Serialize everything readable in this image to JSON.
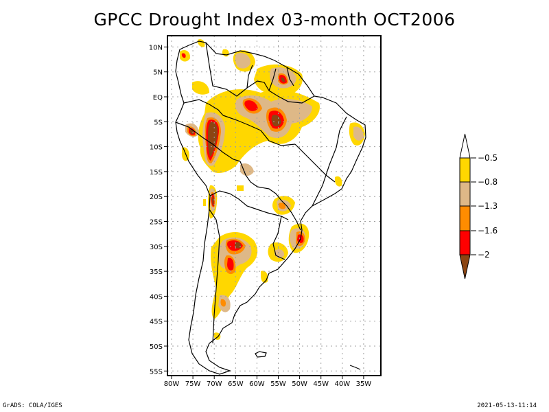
{
  "title": "GPCC Drought Index 03-month OCT2006",
  "footer": {
    "left": "GrADS: COLA/IGES",
    "right": "2021-05-13-11:14"
  },
  "map": {
    "region": "South America",
    "lon_range": [
      -81,
      -31
    ],
    "lat_range": [
      12,
      -56
    ],
    "y_ticks": [
      "10N",
      "5N",
      "EQ",
      "5S",
      "10S",
      "15S",
      "20S",
      "25S",
      "30S",
      "35S",
      "40S",
      "45S",
      "50S",
      "55S"
    ],
    "y_tick_values": [
      10,
      5,
      0,
      -5,
      -10,
      -15,
      -20,
      -25,
      -30,
      -35,
      -40,
      -45,
      -50,
      -55
    ],
    "x_ticks": [
      "80W",
      "75W",
      "70W",
      "65W",
      "60W",
      "55W",
      "50W",
      "45W",
      "40W",
      "35W"
    ],
    "x_tick_values": [
      -80,
      -75,
      -70,
      -65,
      -60,
      -55,
      -50,
      -45,
      -40,
      -35
    ],
    "grid": "dotted"
  },
  "colorbar": {
    "labels": [
      "-0.5",
      "-0.8",
      "-1.3",
      "-1.6",
      "-2"
    ],
    "colors": {
      "gt_-0.5_arrow": "#ffffff",
      "-0.8_to_-0.5": "#ffd700",
      "-1.3_to_-0.8": "#deb887",
      "-1.6_to_-1.3": "#ff8c00",
      "-2_to_-1.6": "#ff0000",
      "lt_-2_arrow": "#8b4513"
    }
  },
  "levels": {
    "l1": "#ffd700",
    "l2": "#deb887",
    "l3": "#ff8c00",
    "l4": "#ff0000",
    "l5": "#8b4513"
  }
}
